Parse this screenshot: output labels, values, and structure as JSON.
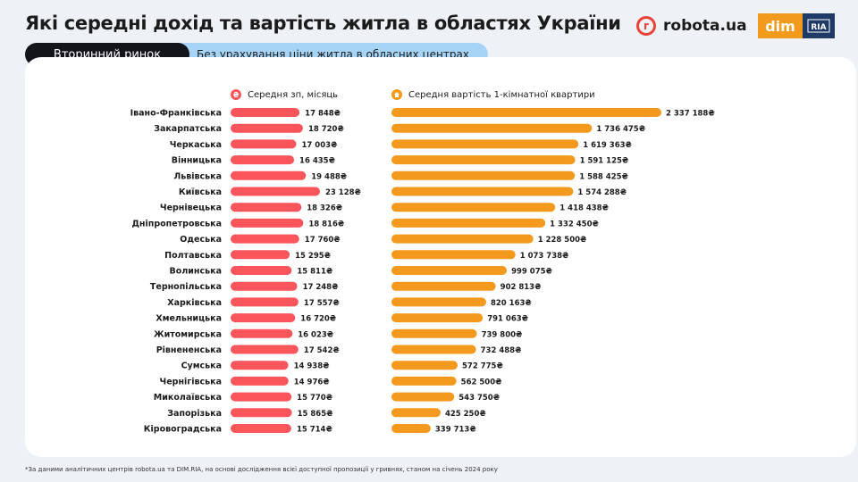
{
  "header": {
    "title": "Які середні дохід та вартість житла в областях України",
    "robota_name": "robota.ua",
    "robota_mark": "r",
    "dim_name": "dim",
    "ria_name": "RIA"
  },
  "tabs": {
    "primary": "Вторинний ринок",
    "secondary": "Без урахування ціни житла в обласних центрах"
  },
  "legend": {
    "salary": "Середня зп, місяць",
    "salary_icon": "₴",
    "price": "Середня вартість 1-кімнатної квартири"
  },
  "footnote": "*За даними аналітичних центрів  robota.ua та DIM.RIA, на основі дослідження всієї доступної пропозиції у гривнях, станом на січень 2024 року",
  "colors": {
    "salary": "#f9555a",
    "price": "#f39a1e",
    "tab_primary": "#14141b",
    "tab_secondary": "#a6d4f7",
    "background": "#eef1f5"
  },
  "chart_data": [
    {
      "type": "bar",
      "orientation": "horizontal",
      "series_name": "Середня зп, місяць",
      "categories": [
        "Івано-Франківська",
        "Закарпатська",
        "Черкаська",
        "Вінницька",
        "Львівська",
        "Київська",
        "Чернівецька",
        "Дніпропетровська",
        "Одеська",
        "Полтавська",
        "Волинська",
        "Тернопільська",
        "Харківська",
        "Хмельницька",
        "Житомирська",
        "Рівнененська",
        "Сумська",
        "Чернігівська",
        "Миколаївська",
        "Запорізька",
        "Кіровоградська"
      ],
      "values": [
        17848,
        18720,
        17003,
        16435,
        19488,
        23128,
        18326,
        18816,
        17760,
        15295,
        15811,
        17248,
        17557,
        16720,
        16023,
        17542,
        14938,
        14976,
        15770,
        15865,
        15714
      ],
      "value_labels": [
        "17 848₴",
        "18 720₴",
        "17 003₴",
        "16 435₴",
        "19 488₴",
        "23 128₴",
        "18 326₴",
        "18 816₴",
        "17 760₴",
        "15 295₴",
        "15 811₴",
        "17 248₴",
        "17 557₴",
        "16 720₴",
        "16 023₴",
        "17 542₴",
        "14 938₴",
        "14 976₴",
        "15 770₴",
        "15 865₴",
        "15 714₴"
      ]
    },
    {
      "type": "bar",
      "orientation": "horizontal",
      "series_name": "Середня вартість 1-кімнатної квартири",
      "categories": [
        "Івано-Франківська",
        "Закарпатська",
        "Черкаська",
        "Вінницька",
        "Львівська",
        "Київська",
        "Чернівецька",
        "Дніпропетровська",
        "Одеська",
        "Полтавська",
        "Волинська",
        "Тернопільська",
        "Харківська",
        "Хмельницька",
        "Житомирська",
        "Рівнененська",
        "Сумська",
        "Чернігівська",
        "Миколаївська",
        "Запорізька",
        "Кіровоградська"
      ],
      "values": [
        2337188,
        1736475,
        1619363,
        1591125,
        1588425,
        1574288,
        1418438,
        1332450,
        1228500,
        1073738,
        999075,
        902813,
        820163,
        791063,
        739800,
        732488,
        572775,
        562500,
        543750,
        425250,
        339713
      ],
      "value_labels": [
        "2 337 188₴",
        "1 736 475₴",
        "1 619 363₴",
        "1 591 125₴",
        "1 588 425₴",
        "1 574 288₴",
        "1 418 438₴",
        "1 332 450₴",
        "1 228 500₴",
        "1 073 738₴",
        "999 075₴",
        "902 813₴",
        "820 163₴",
        "791 063₴",
        "739 800₴",
        "732 488₴",
        "572 775₴",
        "562 500₴",
        "543 750₴",
        "425 250₴",
        "339 713₴"
      ]
    }
  ]
}
